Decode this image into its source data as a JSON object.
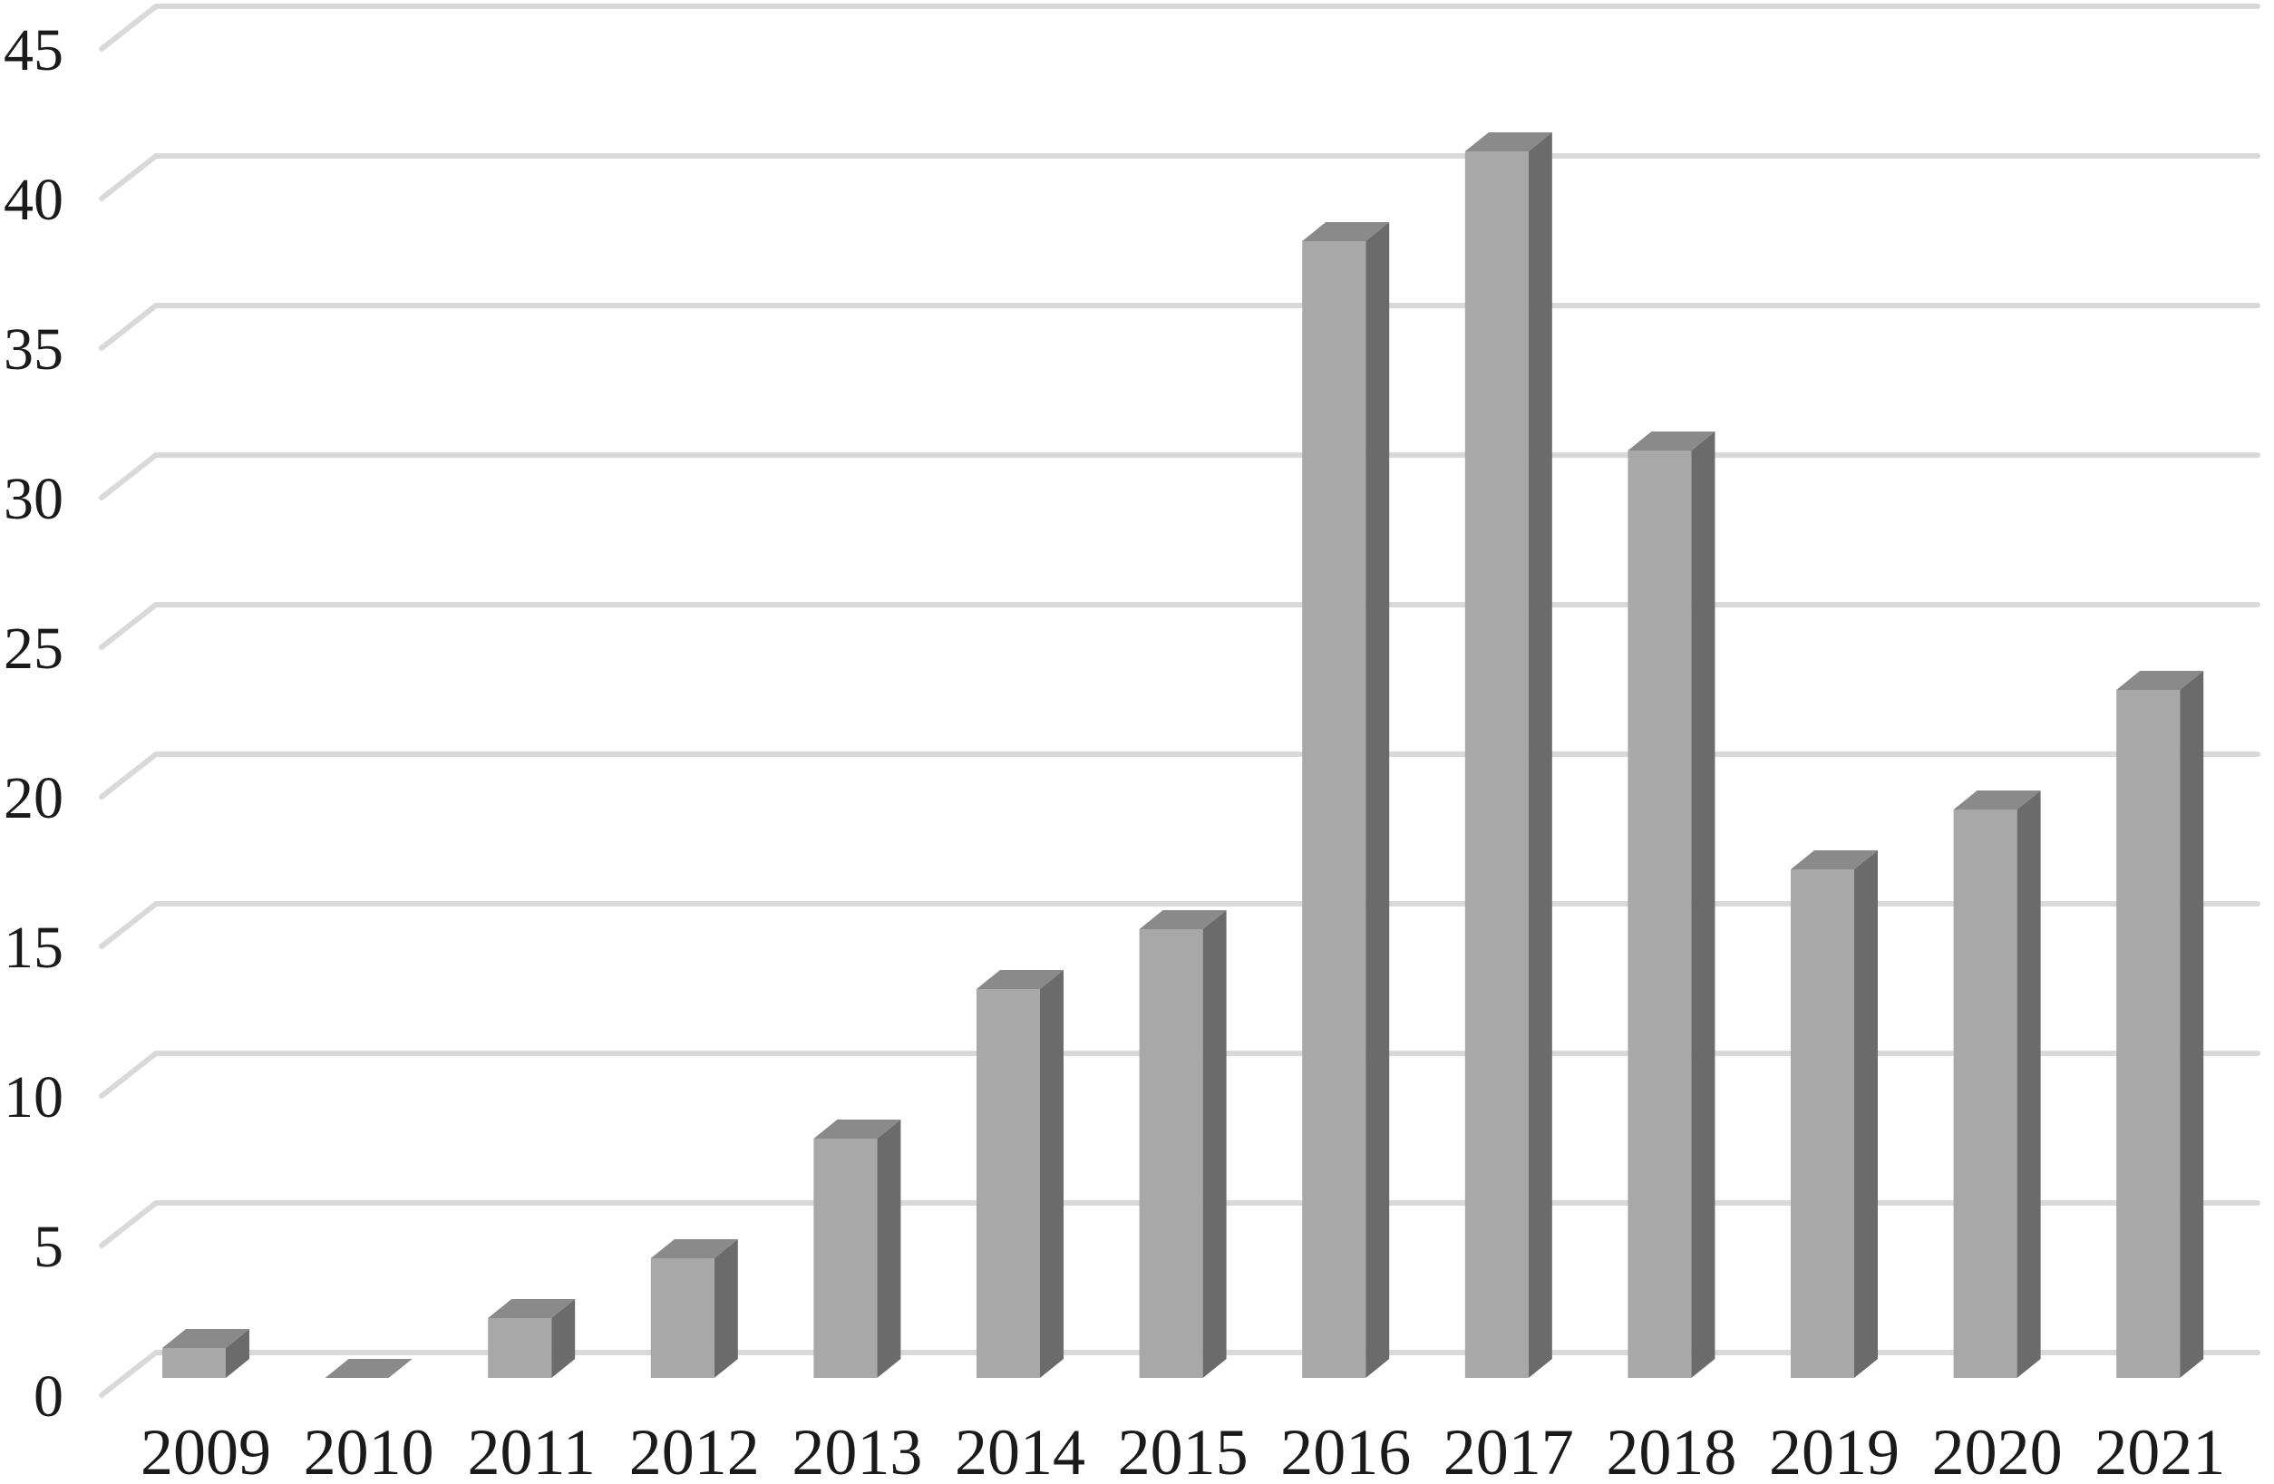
{
  "chart_data": {
    "type": "bar",
    "subtype": "3d-column",
    "title": "",
    "xlabel": "",
    "ylabel": "",
    "categories": [
      "2009",
      "2010",
      "2011",
      "2012",
      "2013",
      "2014",
      "2015",
      "2016",
      "2017",
      "2018",
      "2019",
      "2020",
      "2021"
    ],
    "values": [
      1,
      0,
      2,
      4,
      8,
      13,
      15,
      38,
      41,
      31,
      17,
      19,
      23
    ],
    "ylim": [
      0,
      45
    ],
    "yticks": [
      0,
      5,
      10,
      15,
      20,
      25,
      30,
      35,
      40,
      45
    ],
    "grid": true,
    "legend_position": "none",
    "colors": {
      "bar_front": "#a8a8a8",
      "bar_side": "#6b6b6b",
      "bar_top": "#8a8a8a",
      "gridline": "#d9d9d9",
      "text": "#1a1a1a",
      "background": "#ffffff"
    }
  }
}
